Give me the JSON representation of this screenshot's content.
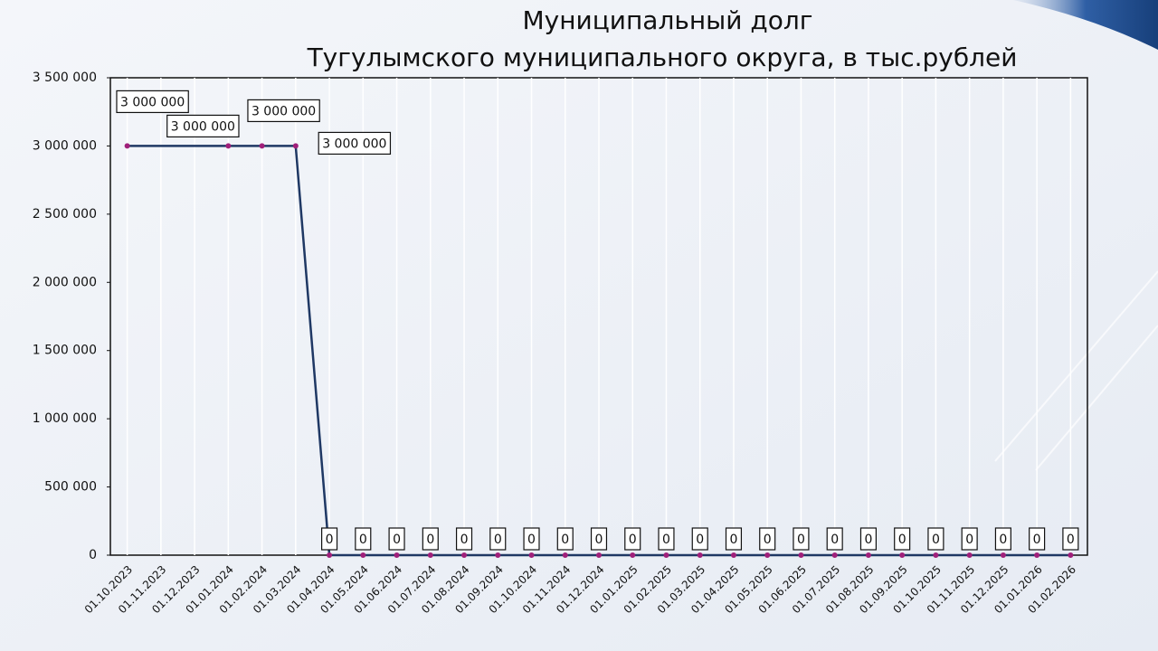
{
  "chart_data": {
    "type": "line",
    "title": [
      "Муниципальный долг",
      "Тугулымского муниципального округа, в тыс.рублей"
    ],
    "categories": [
      "01.10.2023",
      "01.11.2023",
      "01.12.2023",
      "01.01.2024",
      "01.02.2024",
      "01.03.2024",
      "01.04.2024",
      "01.05.2024",
      "01.06.2024",
      "01.07.2024",
      "01.08.2024",
      "01.09.2024",
      "01.10.2024",
      "01.11.2024",
      "01.12.2024",
      "01.01.2025",
      "01.02.2025",
      "01.03.2025",
      "01.04.2025",
      "01.05.2025",
      "01.06.2025",
      "01.07.2025",
      "01.08.2025",
      "01.09.2025",
      "01.10.2025",
      "01.11.2025",
      "01.12.2025",
      "01.01.2026",
      "01.02.2026"
    ],
    "series": [
      {
        "color": "#1f3864",
        "marker_color": "#a0207a",
        "values": [
          3000000,
          null,
          null,
          3000000,
          3000000,
          3000000,
          0,
          0,
          0,
          0,
          0,
          0,
          0,
          0,
          0,
          0,
          0,
          0,
          0,
          0,
          0,
          0,
          0,
          0,
          0,
          0,
          0,
          0,
          0
        ],
        "value_labels": [
          "3 000 000",
          null,
          null,
          "3 000 000",
          "3 000 000",
          "3 000 000",
          "0",
          "0",
          "0",
          "0",
          "0",
          "0",
          "0",
          "0",
          "0",
          "0",
          "0",
          "0",
          "0",
          "0",
          "0",
          "0",
          "0",
          "0",
          "0",
          "0",
          "0",
          "0",
          "0"
        ]
      }
    ],
    "ylim": [
      0,
      3500000
    ],
    "yticks": [
      0,
      {
        "value": 500000,
        "label": "500 000"
      },
      {
        "value": 1000000,
        "label": "1 000 000"
      },
      {
        "value": 1500000,
        "label": "1 500 000"
      },
      {
        "value": 2000000,
        "label": "2 000 000"
      },
      {
        "value": 2500000,
        "label": "2 500 000"
      },
      {
        "value": 3000000,
        "label": "3 000 000"
      },
      {
        "value": 3500000,
        "label": "3 500 000"
      }
    ],
    "grid": "x"
  }
}
